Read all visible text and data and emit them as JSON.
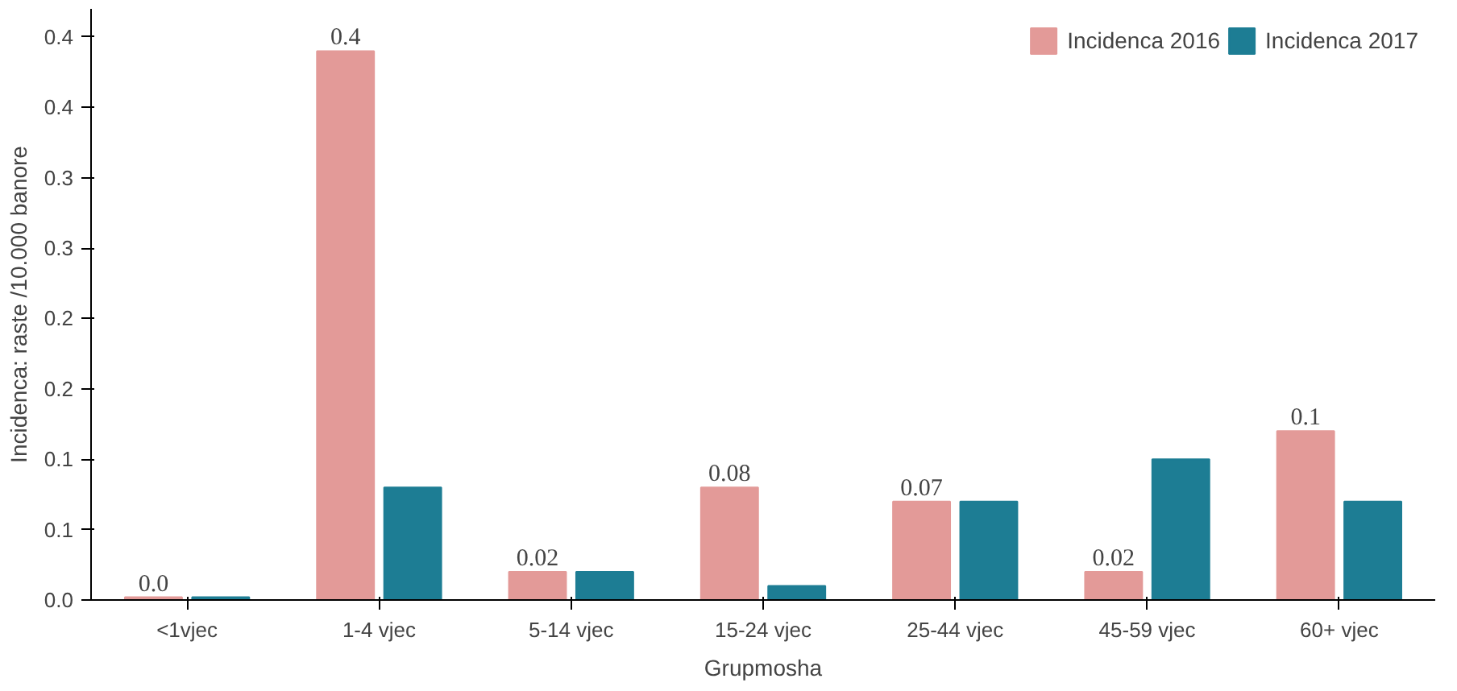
{
  "chart_data": {
    "type": "bar",
    "xlabel": "Grupmosha",
    "ylabel": "Incidenca: raste /10.000 banore",
    "categories": [
      "<1vjec",
      "1-4 vjec",
      "5-14 vjec",
      "15-24 vjec",
      "25-44 vjec",
      "45-59 vjec",
      "60+ vjec"
    ],
    "series": [
      {
        "name": "Incidenca 2016",
        "color": "#e39a98",
        "values": [
          0.002,
          0.39,
          0.02,
          0.08,
          0.07,
          0.02,
          0.12
        ],
        "value_labels": [
          "0.0",
          "0.4",
          "0.02",
          "0.08",
          "0.07",
          "0.02",
          "0.1"
        ]
      },
      {
        "name": "Incidenca 2017",
        "color": "#1d7d94",
        "values": [
          0.002,
          0.08,
          0.02,
          0.01,
          0.07,
          0.1,
          0.07
        ]
      }
    ],
    "ylim": [
      0,
      0.42
    ],
    "yticks": [
      {
        "value": 0,
        "label": "0.0"
      },
      {
        "value": 0.05,
        "label": "0.1"
      },
      {
        "value": 0.1,
        "label": "0.1"
      },
      {
        "value": 0.15,
        "label": "0.2"
      },
      {
        "value": 0.2,
        "label": "0.2"
      },
      {
        "value": 0.25,
        "label": "0.3"
      },
      {
        "value": 0.3,
        "label": "0.3"
      },
      {
        "value": 0.35,
        "label": "0.4"
      },
      {
        "value": 0.4,
        "label": "0.4"
      }
    ],
    "legend": "top right",
    "grid": false
  }
}
